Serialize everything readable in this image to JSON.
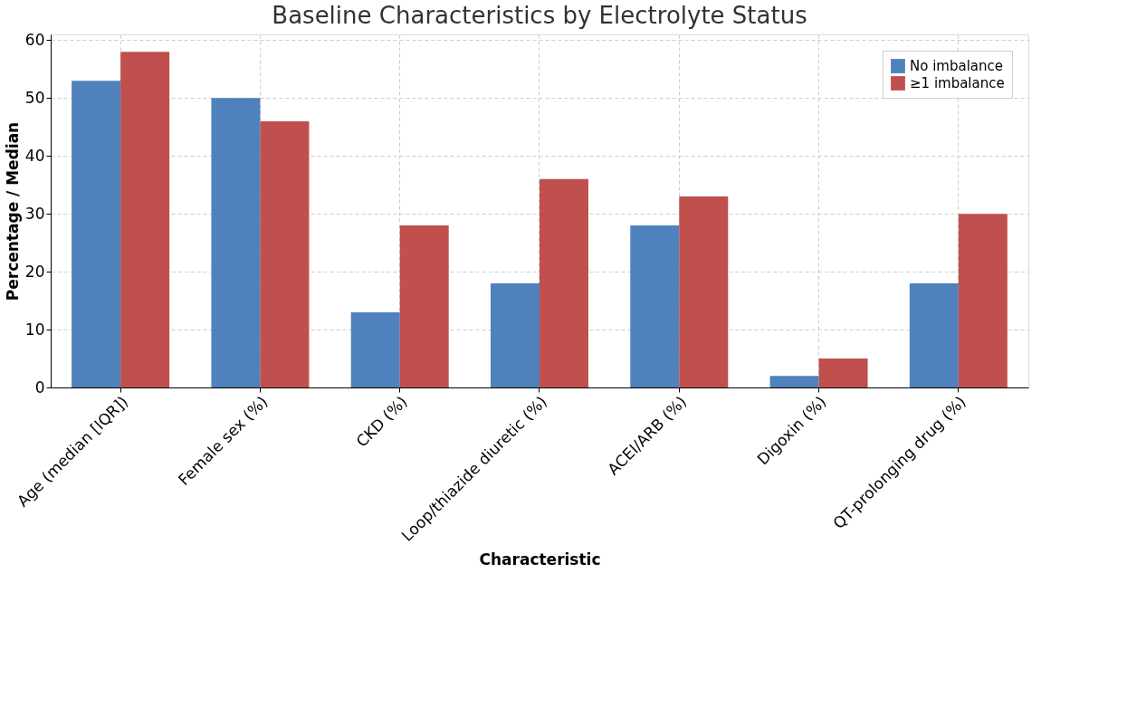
{
  "chart_data": {
    "type": "bar",
    "title": "Baseline Characteristics by Electrolyte Status",
    "xlabel": "Characteristic",
    "ylabel": "Percentage / Median",
    "categories": [
      "Age (median [IQR])",
      "Female sex (%)",
      "CKD (%)",
      "Loop/thiazide diuretic (%)",
      "ACEI/ARB (%)",
      "Digoxin (%)",
      "QT-prolonging drug (%)"
    ],
    "series": [
      {
        "name": "No imbalance",
        "color": "#4f81bd",
        "values": [
          53,
          50,
          13,
          18,
          28,
          2,
          18
        ]
      },
      {
        "name": "≥1 imbalance",
        "color": "#c0504d",
        "values": [
          58,
          46,
          28,
          36,
          33,
          5,
          30
        ]
      }
    ],
    "ylim": [
      0,
      61
    ],
    "yticks": [
      0,
      10,
      20,
      30,
      40,
      50,
      60
    ],
    "grid": true,
    "legend": "top right"
  }
}
